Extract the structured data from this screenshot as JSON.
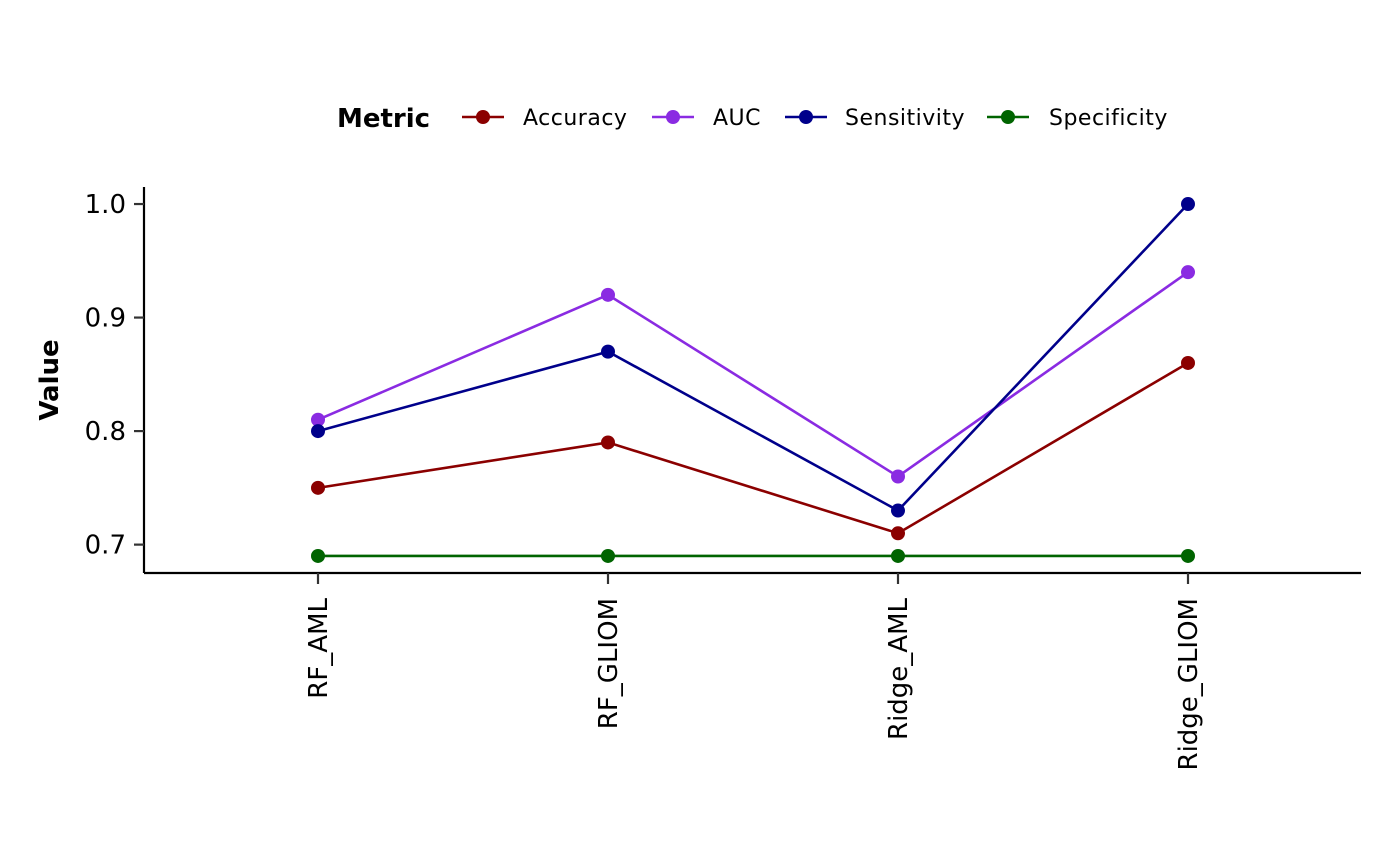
{
  "chart_data": {
    "type": "line",
    "title": "",
    "xlabel": "",
    "ylabel": "Value",
    "categories": [
      "RF_AML",
      "RF_GLIOM",
      "Ridge_AML",
      "Ridge_GLIOM"
    ],
    "ylim": [
      0.675,
      1.015
    ],
    "yticks": [
      0.7,
      0.8,
      0.9,
      1.0
    ],
    "ytick_labels": [
      "0.7",
      "0.8",
      "0.9",
      "1.0"
    ],
    "grid": false,
    "legend": {
      "title": "Metric",
      "placement": "top"
    },
    "series": [
      {
        "name": "Accuracy",
        "color": "#8B0000",
        "values": [
          0.75,
          0.79,
          0.71,
          0.86
        ]
      },
      {
        "name": "AUC",
        "color": "#8A2BE2",
        "values": [
          0.81,
          0.92,
          0.76,
          0.94
        ]
      },
      {
        "name": "Sensitivity",
        "color": "#00008B",
        "values": [
          0.8,
          0.87,
          0.73,
          1.0
        ]
      },
      {
        "name": "Specificity",
        "color": "#006400",
        "values": [
          0.69,
          0.69,
          0.69,
          0.69
        ]
      }
    ]
  }
}
